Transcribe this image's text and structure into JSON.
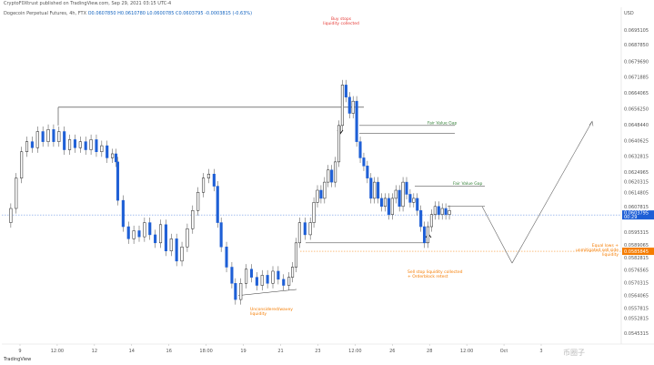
{
  "header": {
    "publisher": "CryptoF0Xtrust published on TradingView.com, Sep 29, 2021 03:15 UTC-4",
    "symbol": "Dogecoin Perpetual Futures, 4h, FTX",
    "ohlc": "O0.0607850 H0.0610780 L0.0600785 C0.0603795 -0.0003815 (-0.63%)"
  },
  "chart_data": {
    "type": "candlestick",
    "currency": "USD",
    "y_ticks": [
      "0.0695105",
      "0.0687850",
      "0.0679690",
      "0.0671885",
      "0.0664065",
      "0.0656250",
      "0.0648440",
      "0.0640625",
      "0.0632815",
      "0.0624965",
      "0.0620315",
      "0.0614805",
      "0.0607815",
      "0.0595315",
      "0.0589065",
      "0.0582815",
      "0.0576565",
      "0.0570315",
      "0.0564065",
      "0.0557815",
      "0.0552815",
      "0.0545315"
    ],
    "ylim": [
      0.054,
      0.0701
    ],
    "x_ticks": [
      "9",
      "12:00",
      "12",
      "14",
      "16",
      "18:00",
      "19",
      "21",
      "23",
      "12:00",
      "26",
      "28",
      "12:00",
      "Oct",
      "3"
    ],
    "price_tag": {
      "value": "0.0603795",
      "countdown": "00:29"
    },
    "target_tag": "0.0585845",
    "candles": [],
    "annotations": [
      {
        "text": "Buy stops liquidity collected",
        "color": "#e53935"
      },
      {
        "text": "Fair Value Gap",
        "color": "#2e7d32"
      },
      {
        "text": "Fair Value Gap",
        "color": "#2e7d32"
      },
      {
        "text": "Sell stop liquidity collected + Orderblock retest",
        "color": "#f57c00"
      },
      {
        "text": "Unconsidered/wavey liquidity",
        "color": "#f57c00"
      },
      {
        "text": "Equal lows + unmitigated sell side liquidity",
        "color": "#f57c00"
      }
    ]
  },
  "footer": "TradingView",
  "watermark": "币圈子"
}
